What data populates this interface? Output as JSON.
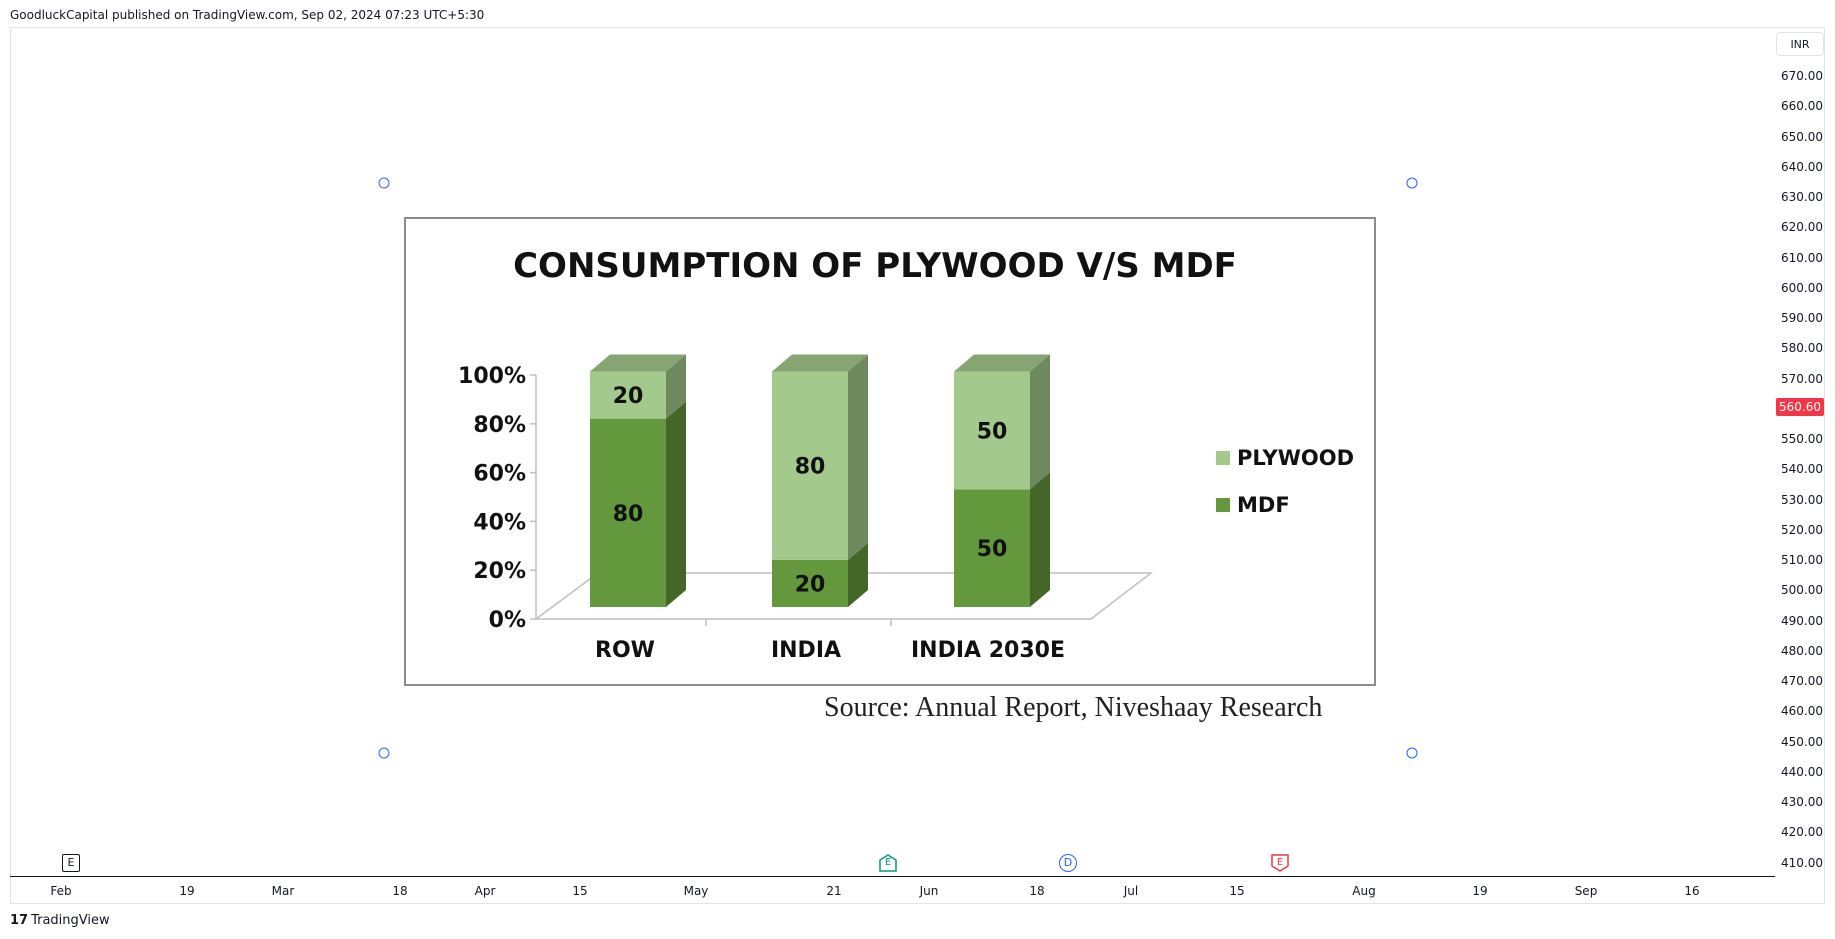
{
  "header": {
    "text": "GoodluckCapital published on TradingView.com, Sep 02, 2024 07:23 UTC+5:30"
  },
  "footer": {
    "brand": "TradingView",
    "logo_glyph": "17"
  },
  "price_axis": {
    "currency": "INR",
    "last_price": "560.60",
    "last_price_color": "#f23645",
    "labels": [
      "670.00",
      "660.00",
      "650.00",
      "640.00",
      "630.00",
      "620.00",
      "610.00",
      "600.00",
      "590.00",
      "580.00",
      "570.00",
      "550.00",
      "540.00",
      "530.00",
      "520.00",
      "510.00",
      "500.00",
      "490.00",
      "480.00",
      "470.00",
      "460.00",
      "450.00",
      "440.00",
      "430.00",
      "420.00",
      "410.00"
    ]
  },
  "time_axis": {
    "labels": [
      "Feb",
      "19",
      "Mar",
      "18",
      "Apr",
      "15",
      "May",
      "21",
      "Jun",
      "18",
      "Jul",
      "15",
      "Aug",
      "19",
      "Sep",
      "16"
    ]
  },
  "event_markers": [
    {
      "type": "earnings",
      "label": "E",
      "color": "#131722"
    },
    {
      "type": "earnings",
      "label": "E",
      "color": "#089981"
    },
    {
      "type": "dividend",
      "label": "D",
      "color": "#2962ff"
    },
    {
      "type": "earnings",
      "label": "E",
      "color": "#f23645"
    }
  ],
  "source_text": "Source: Annual Report, Niveshaay Research",
  "chart_data": {
    "type": "bar",
    "stacked": true,
    "three_d": true,
    "title": "CONSUMPTION OF PLYWOOD V/S MDF",
    "categories": [
      "ROW",
      "INDIA",
      "INDIA 2030E"
    ],
    "series": [
      {
        "name": "MDF",
        "values": [
          80,
          20,
          50
        ],
        "color": "#64983c"
      },
      {
        "name": "PLYWOOD",
        "values": [
          20,
          80,
          50
        ],
        "color": "#a3c98c"
      }
    ],
    "y_ticks": [
      "0%",
      "20%",
      "40%",
      "60%",
      "80%",
      "100%"
    ],
    "ylim": [
      0,
      100
    ],
    "legend_position": "right",
    "grid": false
  }
}
